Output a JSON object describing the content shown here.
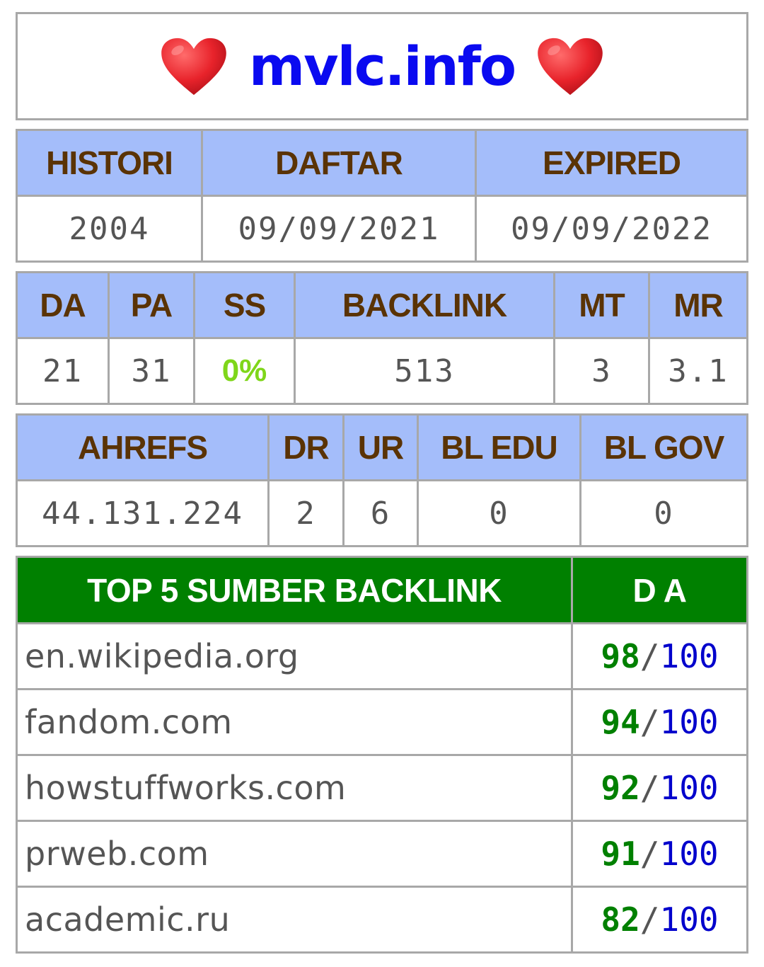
{
  "site": {
    "title": "mvlc.info",
    "heart_icon": "red-heart",
    "colors": {
      "title": "#0a0af0",
      "heart": "#e8232b"
    }
  },
  "history": {
    "headers": [
      "HISTORI",
      "DAFTAR",
      "EXPIRED"
    ],
    "values": [
      "2004",
      "09/09/2021",
      "09/09/2022"
    ]
  },
  "metrics": {
    "headers": [
      "DA",
      "PA",
      "SS",
      "BACKLINK",
      "MT",
      "MR"
    ],
    "values": [
      "21",
      "31",
      "0%",
      "513",
      "3",
      "3.1"
    ]
  },
  "ahrefs": {
    "headers": [
      "AHREFS",
      "DR",
      "UR",
      "BL EDU",
      "BL GOV"
    ],
    "values": [
      "44.131.224",
      "2",
      "6",
      "0",
      "0"
    ]
  },
  "top_backlinks": {
    "headers": [
      "TOP 5 SUMBER BACKLINK",
      "D A"
    ],
    "rows": [
      {
        "domain": "en.wikipedia.org",
        "score": "98",
        "max": "100"
      },
      {
        "domain": "fandom.com",
        "score": "94",
        "max": "100"
      },
      {
        "domain": "howstuffworks.com",
        "score": "92",
        "max": "100"
      },
      {
        "domain": "prweb.com",
        "score": "91",
        "max": "100"
      },
      {
        "domain": "academic.ru",
        "score": "82",
        "max": "100"
      }
    ],
    "separator": "/",
    "colors": {
      "header_bg": "#008000",
      "score": "#008000",
      "max": "#0000cc"
    }
  }
}
